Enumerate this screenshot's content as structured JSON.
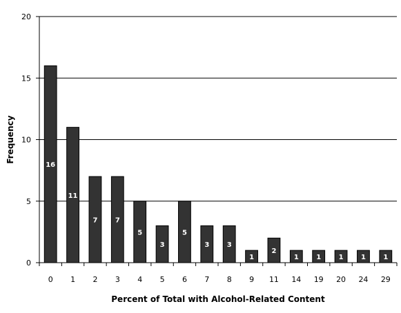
{
  "chart_data": {
    "type": "bar",
    "title": "",
    "xlabel": "Percent of Total with Alcohol-Related Content",
    "ylabel": "Frequency",
    "categories": [
      "0",
      "1",
      "2",
      "3",
      "4",
      "5",
      "6",
      "7",
      "8",
      "9",
      "11",
      "14",
      "19",
      "20",
      "24",
      "29"
    ],
    "values": [
      16,
      11,
      7,
      7,
      5,
      3,
      5,
      3,
      3,
      1,
      2,
      1,
      1,
      1,
      1,
      1
    ],
    "data_labels": [
      "16",
      "11",
      "7",
      "7",
      "5",
      "3",
      "5",
      "3",
      "3",
      "1",
      "2",
      "1",
      "1",
      "1",
      "1",
      "1"
    ],
    "ylim": [
      0,
      20
    ],
    "yticks": [
      0,
      5,
      10,
      15,
      20
    ],
    "ytick_labels": [
      "0",
      "5",
      "10",
      "15",
      "20"
    ],
    "grid": "horizontal major gridlines on",
    "legend": "none",
    "colors": {
      "bar_fill": "#333333",
      "bar_stroke": "#000000",
      "grid": "#000000",
      "data_label": "#ffffff"
    }
  }
}
